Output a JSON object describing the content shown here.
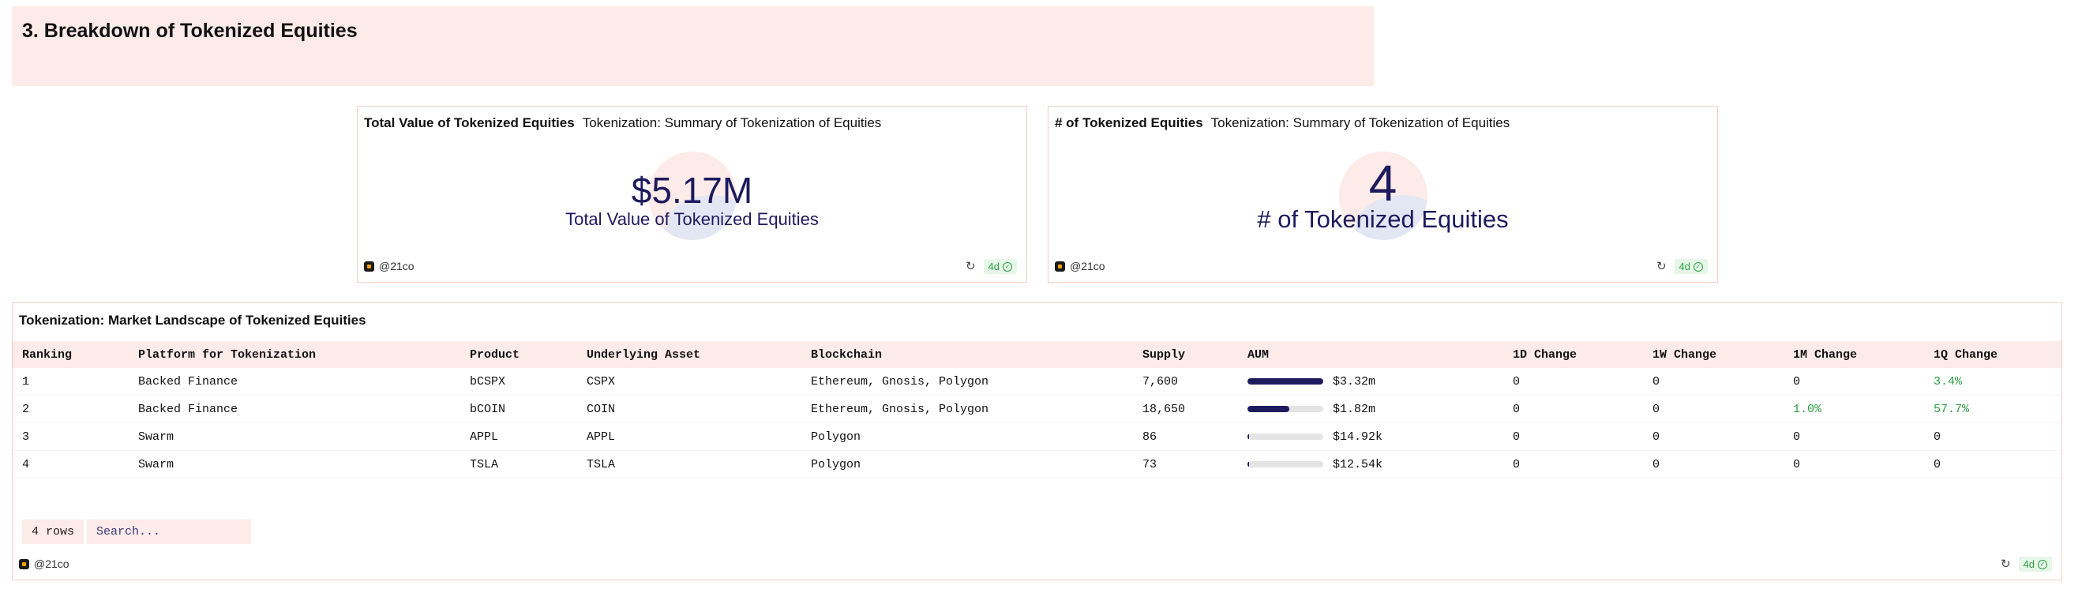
{
  "section": {
    "title": "3. Breakdown of Tokenized Equities"
  },
  "cards": [
    {
      "title": "Total Value of Tokenized Equities",
      "subtitle": "Tokenization: Summary of Tokenization of Equities",
      "value": "$5.17M",
      "label": "Total Value of Tokenized Equities",
      "owner": "@21co",
      "age": "4d",
      "refresh_icon": "refresh-icon",
      "status_icon": "check-circle-icon"
    },
    {
      "title": "# of Tokenized Equities",
      "subtitle": "Tokenization: Summary of Tokenization of Equities",
      "value": "4",
      "label": "# of Tokenized Equities",
      "owner": "@21co",
      "age": "4d",
      "refresh_icon": "refresh-icon",
      "status_icon": "check-circle-icon"
    }
  ],
  "table": {
    "title": "Tokenization: Market Landscape of Tokenized Equities",
    "columns": [
      "Ranking",
      "Platform for Tokenization",
      "Product",
      "Underlying Asset",
      "Blockchain",
      "Supply",
      "AUM",
      "1D Change",
      "1W Change",
      "1M Change",
      "1Q Change"
    ],
    "rows": [
      {
        "ranking": "1",
        "platform": "Backed Finance",
        "product": "bCSPX",
        "underlying": "CSPX",
        "blockchain": "Ethereum, Gnosis, Polygon",
        "supply": "7,600",
        "aum": "$3.32m",
        "aum_share": 1.0,
        "d1": "0",
        "w1": "0",
        "m1": "0",
        "q1": "3.4%"
      },
      {
        "ranking": "2",
        "platform": "Backed Finance",
        "product": "bCOIN",
        "underlying": "COIN",
        "blockchain": "Ethereum, Gnosis, Polygon",
        "supply": "18,650",
        "aum": "$1.82m",
        "aum_share": 0.55,
        "d1": "0",
        "w1": "0",
        "m1": "1.0%",
        "q1": "57.7%"
      },
      {
        "ranking": "3",
        "platform": "Swarm",
        "product": "APPL",
        "underlying": "APPL",
        "blockchain": "Polygon",
        "supply": "86",
        "aum": "$14.92k",
        "aum_share": 0.02,
        "d1": "0",
        "w1": "0",
        "m1": "0",
        "q1": "0"
      },
      {
        "ranking": "4",
        "platform": "Swarm",
        "product": "TSLA",
        "underlying": "TSLA",
        "blockchain": "Polygon",
        "supply": "73",
        "aum": "$12.54k",
        "aum_share": 0.02,
        "d1": "0",
        "w1": "0",
        "m1": "0",
        "q1": "0"
      }
    ],
    "row_count": "4 rows",
    "search_placeholder": "Search...",
    "owner": "@21co",
    "age": "4d",
    "positive_color": "#2f9e44",
    "bar_color": "#1d1a5e"
  }
}
